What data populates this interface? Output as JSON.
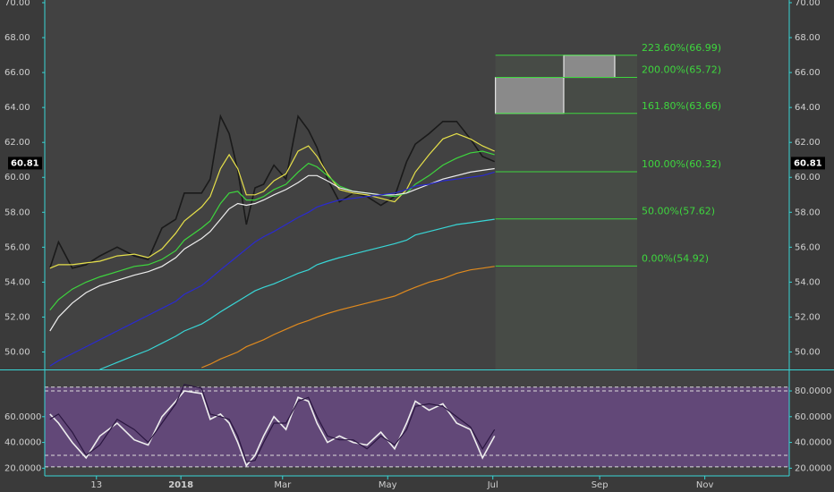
{
  "chart_data": [
    {
      "type": "line",
      "xlim": [
        -30,
        402
      ],
      "xticks": [
        {
          "value": 0,
          "label": "13"
        },
        {
          "value": 49,
          "label": "2018"
        },
        {
          "value": 108,
          "label": "Mar"
        },
        {
          "value": 169,
          "label": "May"
        },
        {
          "value": 230,
          "label": "Jul"
        },
        {
          "value": 292,
          "label": "Sep"
        },
        {
          "value": 353,
          "label": "Nov"
        }
      ],
      "ylim": [
        49,
        70
      ],
      "yticks": [
        {
          "value": 50,
          "label": "50.00"
        },
        {
          "value": 52,
          "label": "52.00"
        },
        {
          "value": 54,
          "label": "54.00"
        },
        {
          "value": 56,
          "label": "56.00"
        },
        {
          "value": 58,
          "label": "58.00"
        },
        {
          "value": 60,
          "label": "60.00"
        },
        {
          "value": 62,
          "label": "62.00"
        },
        {
          "value": 64,
          "label": "64.00"
        },
        {
          "value": 66,
          "label": "66.00"
        },
        {
          "value": 68,
          "label": "68.00"
        },
        {
          "value": 70,
          "label": "70.00"
        }
      ],
      "last_value": 60.81,
      "x": [
        -27,
        -22,
        -14,
        -6,
        2,
        12,
        22,
        30,
        38,
        46,
        51,
        61,
        66,
        72,
        77,
        82,
        87,
        92,
        97,
        103,
        110,
        117,
        123,
        128,
        134,
        141,
        149,
        157,
        165,
        173,
        180,
        185,
        193,
        201,
        209,
        217,
        224,
        231
      ],
      "series": [
        {
          "color": "#1a1a1a",
          "values": [
            54.8,
            56.3,
            54.8,
            55.0,
            55.5,
            56.0,
            55.5,
            55.3,
            57.1,
            57.6,
            59.1,
            59.1,
            59.9,
            63.5,
            62.5,
            60.4,
            57.3,
            59.4,
            59.6,
            60.7,
            59.9,
            63.5,
            62.7,
            61.7,
            59.9,
            58.6,
            59.1,
            58.9,
            58.4,
            58.9,
            60.9,
            61.9,
            62.5,
            63.2,
            63.2,
            62.2,
            61.2,
            60.9
          ]
        },
        {
          "color": "#e6e04a",
          "values": [
            54.8,
            55.0,
            55.0,
            55.1,
            55.2,
            55.5,
            55.6,
            55.4,
            55.9,
            56.8,
            57.5,
            58.3,
            58.9,
            60.5,
            61.3,
            60.5,
            59.0,
            59.0,
            59.2,
            59.8,
            60.2,
            61.5,
            61.8,
            61.2,
            60.2,
            59.3,
            59.1,
            59.0,
            58.8,
            58.6,
            59.3,
            60.3,
            61.3,
            62.2,
            62.5,
            62.2,
            61.8,
            61.5
          ]
        },
        {
          "color": "#3ed63e",
          "values": [
            52.4,
            53.0,
            53.6,
            54.0,
            54.3,
            54.6,
            54.9,
            55.0,
            55.3,
            55.8,
            56.4,
            57.1,
            57.5,
            58.5,
            59.1,
            59.2,
            58.7,
            58.7,
            58.9,
            59.3,
            59.6,
            60.3,
            60.8,
            60.6,
            60.1,
            59.5,
            59.2,
            59.1,
            59.0,
            58.9,
            59.1,
            59.6,
            60.1,
            60.7,
            61.1,
            61.4,
            61.5,
            61.3
          ]
        },
        {
          "color": "#eeeeee",
          "values": [
            51.2,
            52.0,
            52.8,
            53.4,
            53.8,
            54.1,
            54.4,
            54.6,
            54.9,
            55.4,
            55.9,
            56.5,
            56.9,
            57.6,
            58.2,
            58.5,
            58.4,
            58.5,
            58.7,
            59.0,
            59.3,
            59.7,
            60.1,
            60.1,
            59.8,
            59.4,
            59.2,
            59.1,
            59.0,
            59.0,
            59.1,
            59.3,
            59.6,
            59.9,
            60.1,
            60.3,
            60.4,
            60.5
          ]
        },
        {
          "color": "#2a2ad0",
          "values": [
            49.2,
            49.5,
            49.9,
            50.3,
            50.7,
            51.2,
            51.7,
            52.1,
            52.5,
            52.9,
            53.3,
            53.8,
            54.2,
            54.7,
            55.1,
            55.5,
            55.9,
            56.3,
            56.6,
            56.9,
            57.3,
            57.7,
            58.0,
            58.3,
            58.5,
            58.7,
            58.8,
            58.9,
            59.0,
            59.1,
            59.3,
            59.5,
            59.6,
            59.8,
            59.9,
            60.0,
            60.1,
            60.3
          ]
        },
        {
          "color": "#38d6d6",
          "values": [
            null,
            null,
            null,
            null,
            49.0,
            49.4,
            49.8,
            50.1,
            50.5,
            50.9,
            51.2,
            51.6,
            51.9,
            52.3,
            52.6,
            52.9,
            53.2,
            53.5,
            53.7,
            53.9,
            54.2,
            54.5,
            54.7,
            55.0,
            55.2,
            55.4,
            55.6,
            55.8,
            56.0,
            56.2,
            56.4,
            56.7,
            56.9,
            57.1,
            57.3,
            57.4,
            57.5,
            57.6
          ]
        },
        {
          "color": "#e08a1e",
          "values": [
            null,
            null,
            null,
            null,
            null,
            null,
            null,
            null,
            null,
            null,
            null,
            49.1,
            49.3,
            49.6,
            49.8,
            50.0,
            50.3,
            50.5,
            50.7,
            51.0,
            51.3,
            51.6,
            51.8,
            52.0,
            52.2,
            52.4,
            52.6,
            52.8,
            53.0,
            53.2,
            53.5,
            53.7,
            54.0,
            54.2,
            54.5,
            54.7,
            54.8,
            54.9
          ]
        }
      ],
      "fib_color": "#3ed63e",
      "fib_levels": [
        {
          "value": 66.99,
          "label": "223.60%(66.99)"
        },
        {
          "value": 65.72,
          "label": "200.00%(65.72)"
        },
        {
          "value": 63.66,
          "label": "161.80%(63.66)"
        },
        {
          "value": 60.32,
          "label": "100.00%(60.32)"
        },
        {
          "value": 57.62,
          "label": "50.00%(57.62)"
        },
        {
          "value": 54.92,
          "label": "0.00%(54.92)"
        }
      ]
    },
    {
      "type": "line",
      "ylim": [
        14,
        96
      ],
      "yticks": [
        {
          "value": 20,
          "label": "20.0000"
        },
        {
          "value": 40,
          "label": "40.0000"
        },
        {
          "value": 60,
          "label": "60.0000"
        },
        {
          "value": 80,
          "label": "80.0000"
        }
      ],
      "yticks_left": [
        {
          "value": 20,
          "label": "20.0000"
        },
        {
          "value": 40,
          "label": "40.0000"
        },
        {
          "value": 60,
          "label": "60.0000"
        }
      ],
      "levels": [
        83,
        80,
        30,
        21
      ],
      "fill_color": "#6a4a86",
      "series": [
        {
          "color": "#eeeeee",
          "values": [
            62,
            55,
            40,
            28,
            45,
            55,
            42,
            38,
            60,
            72,
            80,
            78,
            58,
            62,
            55,
            40,
            22,
            30,
            45,
            60,
            50,
            75,
            72,
            55,
            40,
            45,
            40,
            38,
            48,
            35,
            55,
            72,
            65,
            70,
            55,
            50,
            28,
            45
          ]
        },
        {
          "color": "#2a1640",
          "values": [
            58,
            62,
            48,
            30,
            38,
            58,
            50,
            40,
            55,
            70,
            85,
            82,
            62,
            60,
            58,
            45,
            25,
            26,
            40,
            55,
            55,
            72,
            75,
            60,
            45,
            42,
            42,
            35,
            45,
            38,
            50,
            68,
            70,
            68,
            60,
            52,
            35,
            50
          ]
        }
      ]
    }
  ]
}
